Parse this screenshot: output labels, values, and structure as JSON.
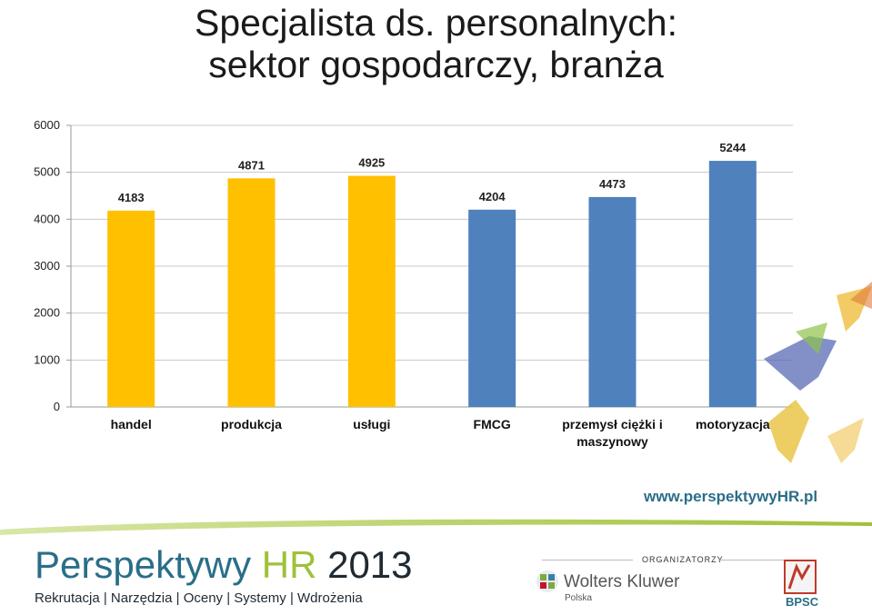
{
  "title": {
    "line1": "Specjalista ds. personalnych:",
    "line2": "sektor gospodarczy, branża"
  },
  "chart_data": {
    "type": "bar",
    "categories": [
      "handel",
      "produkcja",
      "usługi",
      "FMCG",
      "przemysł ciężki i maszynowy",
      "motoryzacja"
    ],
    "category_lines": [
      [
        "handel"
      ],
      [
        "produkcja"
      ],
      [
        "usługi"
      ],
      [
        "FMCG"
      ],
      [
        "przemysł ciężki i",
        "maszynowy"
      ],
      [
        "motoryzacja"
      ]
    ],
    "values": [
      4183,
      4871,
      4925,
      4204,
      4473,
      5244
    ],
    "bar_colors": [
      "#FFC000",
      "#FFC000",
      "#FFC000",
      "#4F81BD",
      "#4F81BD",
      "#4F81BD"
    ],
    "ylim": [
      0,
      6000
    ],
    "yticks": [
      0,
      1000,
      2000,
      3000,
      4000,
      5000,
      6000
    ],
    "grid": true,
    "title": "",
    "xlabel": "",
    "ylabel": ""
  },
  "footer": {
    "url": "www.perspektywyHR.pl",
    "brand_part1": "Perspektywy ",
    "brand_part2": "HR",
    "brand_year": " 2013",
    "tagline": "Rekrutacja | Narzędzia | Oceny | Systemy | Wdrożenia",
    "organizers_label": "ORGANIZATORZY",
    "org1_name": "Wolters Kluwer",
    "org1_country": "Polska",
    "org2_name": "BPSC"
  },
  "colors": {
    "accent_teal": "#2a6e88",
    "accent_green": "#9fc13a"
  }
}
